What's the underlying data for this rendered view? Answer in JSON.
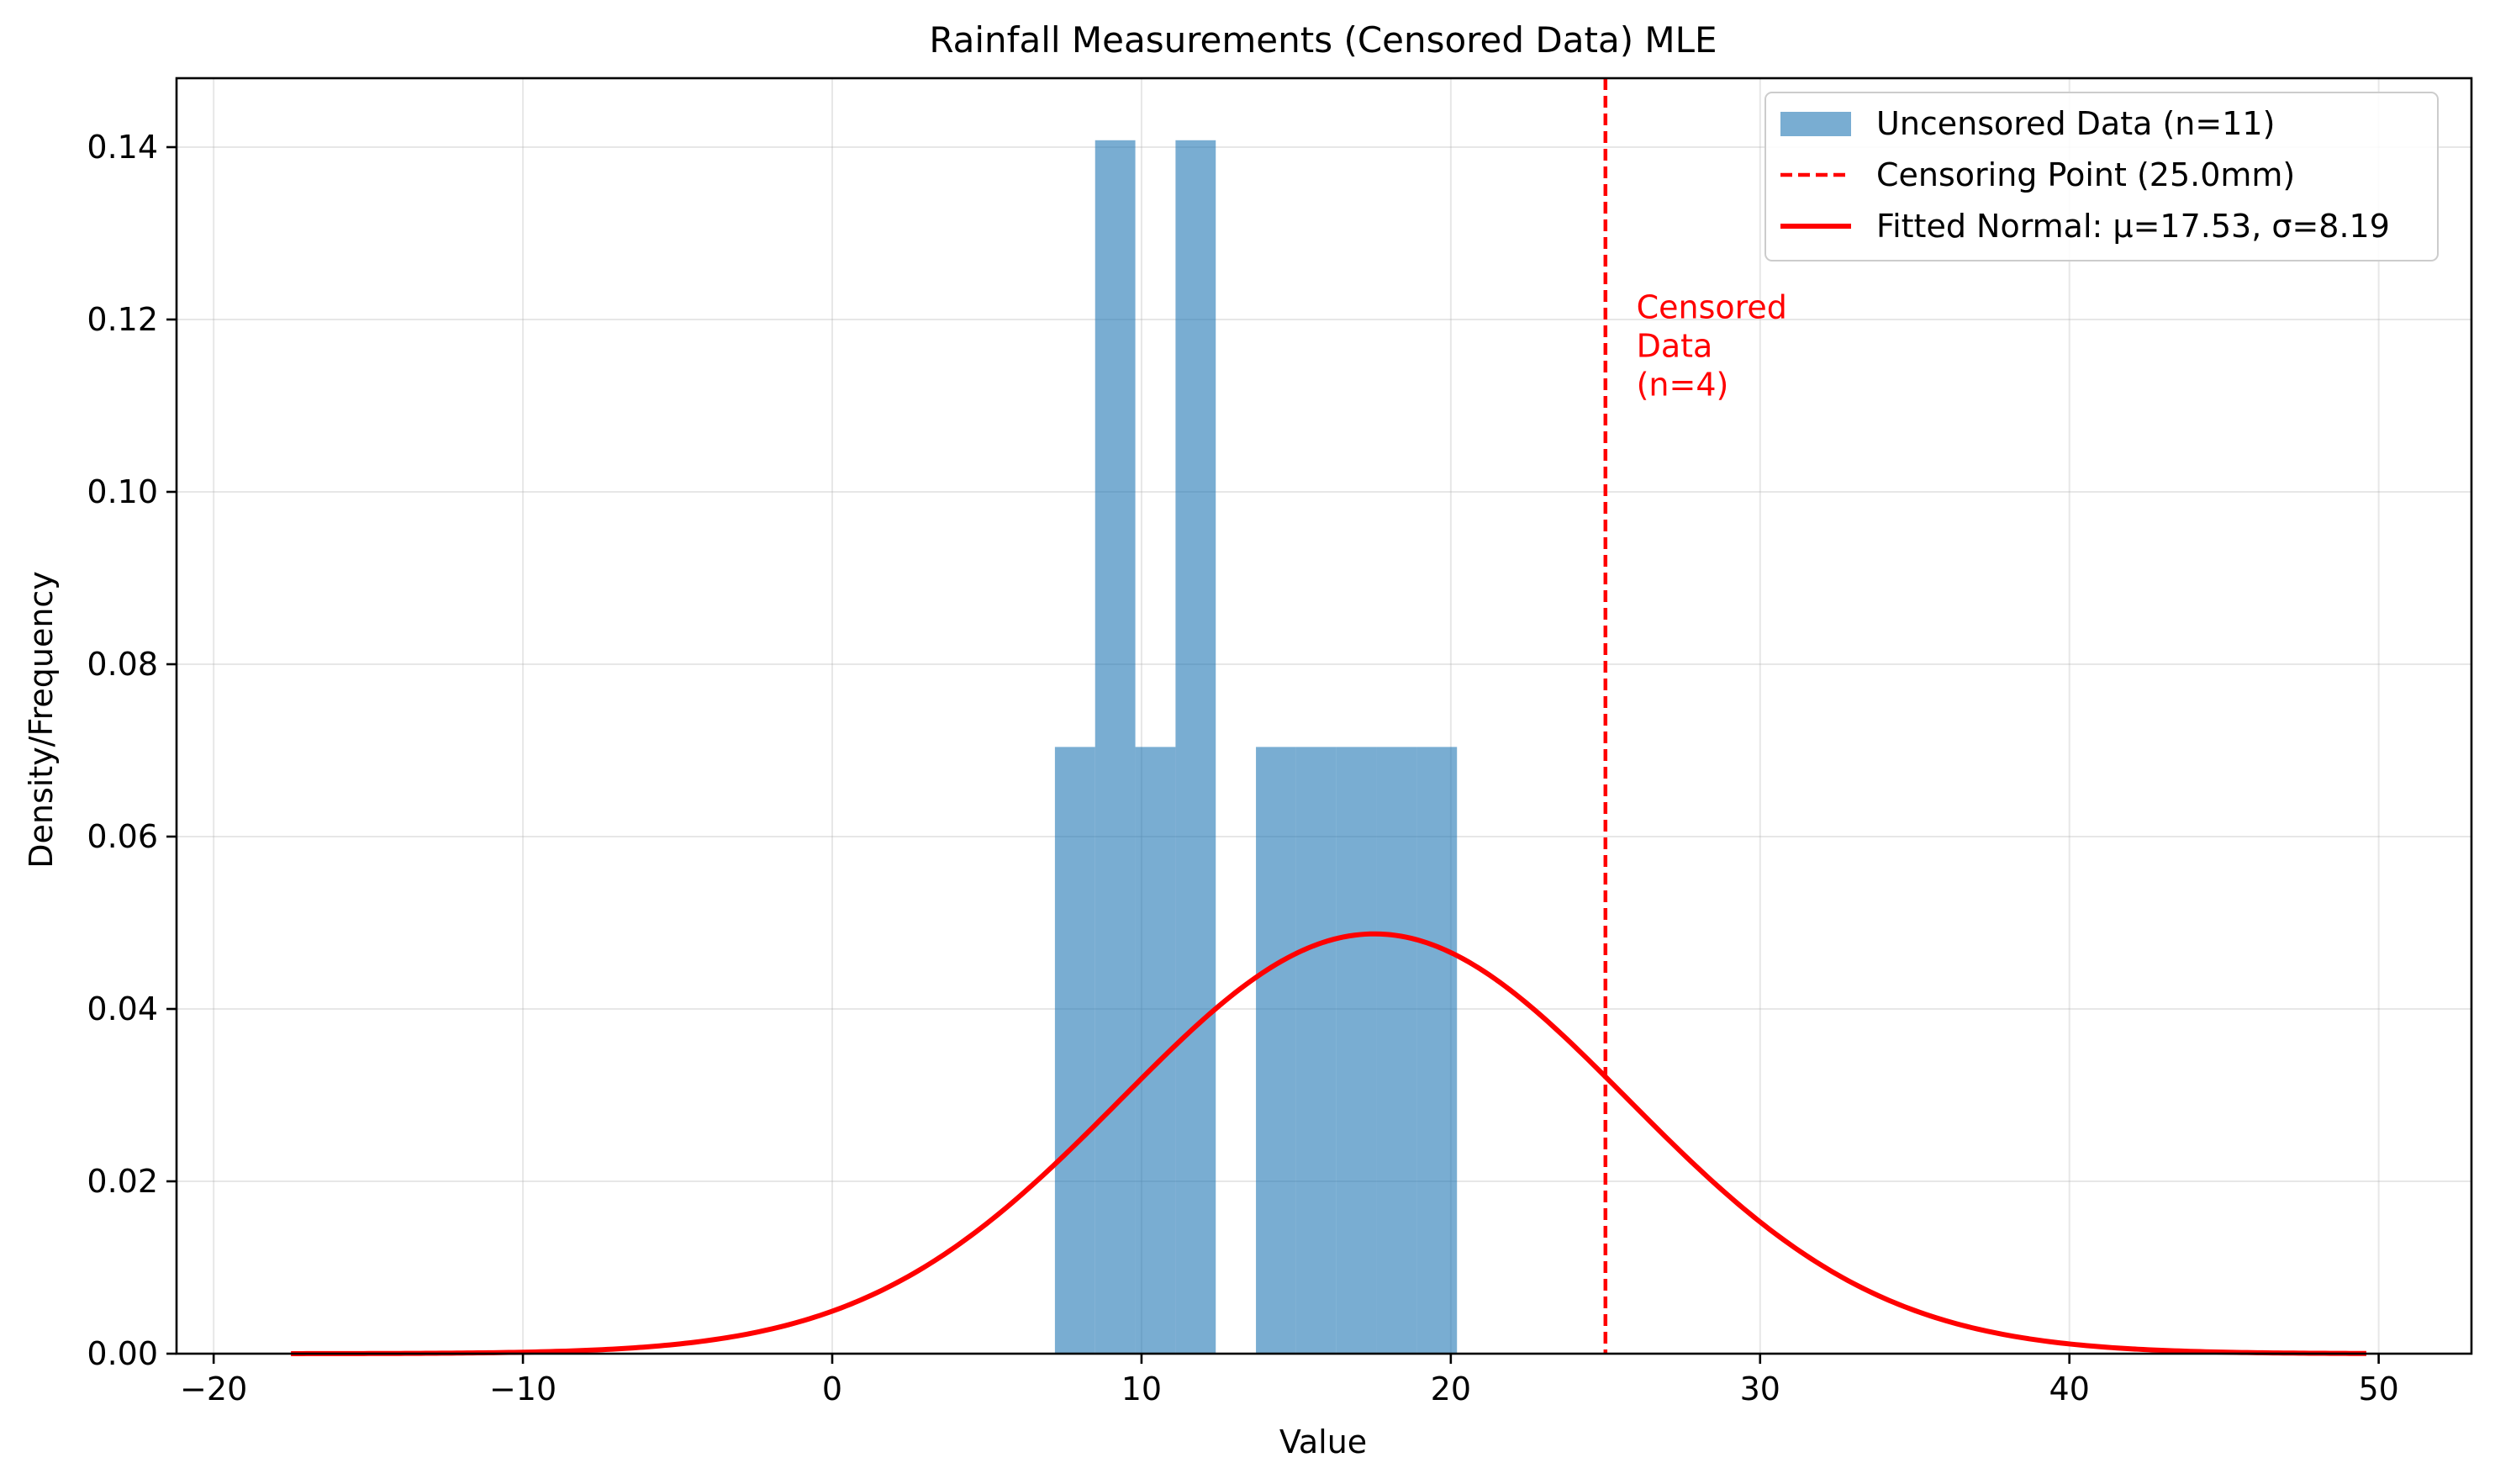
{
  "chart_data": {
    "type": "bar",
    "title": "Rainfall Measurements (Censored Data) MLE",
    "xlabel": "Value",
    "ylabel": "Density/Frequency",
    "xlim": [
      -21.2,
      53
    ],
    "ylim": [
      0,
      0.148
    ],
    "grid": true,
    "legend_position": "top-right",
    "x_ticks": [
      -20,
      -10,
      0,
      10,
      20,
      30,
      40,
      50
    ],
    "x_tick_labels": [
      "−20",
      "−10",
      "0",
      "10",
      "20",
      "30",
      "40",
      "50"
    ],
    "y_ticks": [
      0,
      0.02,
      0.04,
      0.06,
      0.08,
      0.1,
      0.12,
      0.14
    ],
    "y_tick_labels": [
      "0.00",
      "0.02",
      "0.04",
      "0.06",
      "0.08",
      "0.10",
      "0.12",
      "0.14"
    ],
    "histogram": {
      "name": "Uncensored Data (n=11)",
      "color": "#1f77b4",
      "bin_edges": [
        7.2,
        8.5,
        9.8,
        11.1,
        12.4,
        13.7,
        15.0,
        16.3,
        17.6,
        18.9,
        20.2
      ],
      "densities": [
        0.0704,
        0.1408,
        0.0704,
        0.1408,
        0,
        0.0704,
        0.0704,
        0.0704,
        0.0704,
        0.0704
      ]
    },
    "censoring_line": {
      "name": "Censoring Point (25.0mm)",
      "x": 25.0,
      "color": "#ff0000"
    },
    "fitted_curve": {
      "name": "Fitted Normal: μ=17.53, σ=8.19",
      "mu": 17.53,
      "sigma": 8.19,
      "x_range": [
        -17.5,
        49.6
      ],
      "color": "#ff0000"
    },
    "annotation": {
      "lines": [
        "Censored",
        "Data",
        "(n=4)"
      ],
      "x": 26.0,
      "y": 0.1215,
      "color": "#ff0000"
    }
  }
}
